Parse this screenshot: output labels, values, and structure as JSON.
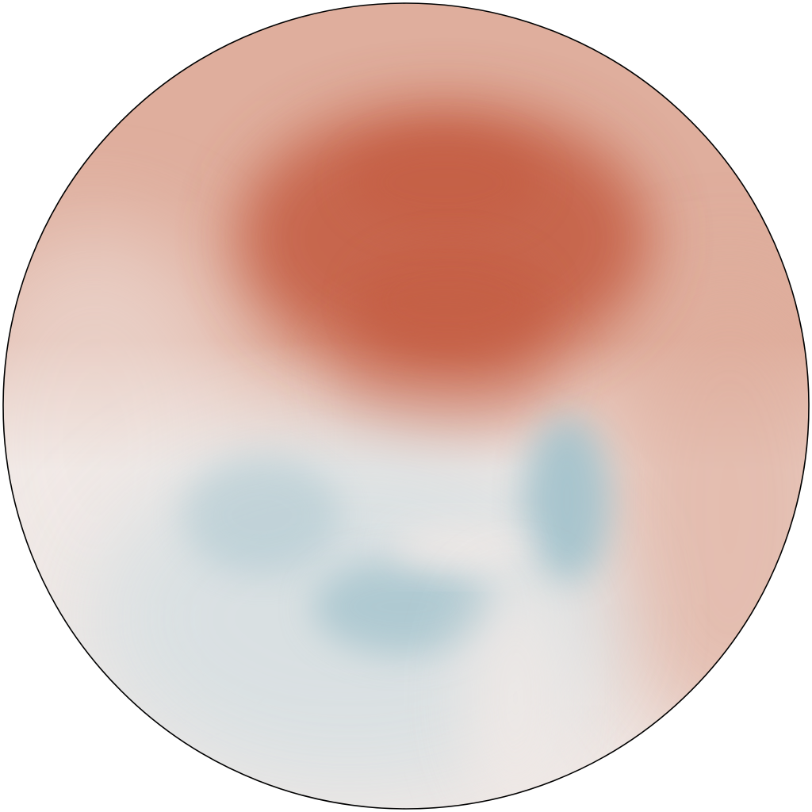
{
  "map": {
    "projection": "circular",
    "palette": {
      "warm_max": "#c55f45",
      "warm_mid": "#dfae9d",
      "neutral": "#f1e9e6",
      "cool_mid": "#d5dfe2",
      "cool_max": "#a2c2cc"
    },
    "outline_color": "#000000"
  }
}
